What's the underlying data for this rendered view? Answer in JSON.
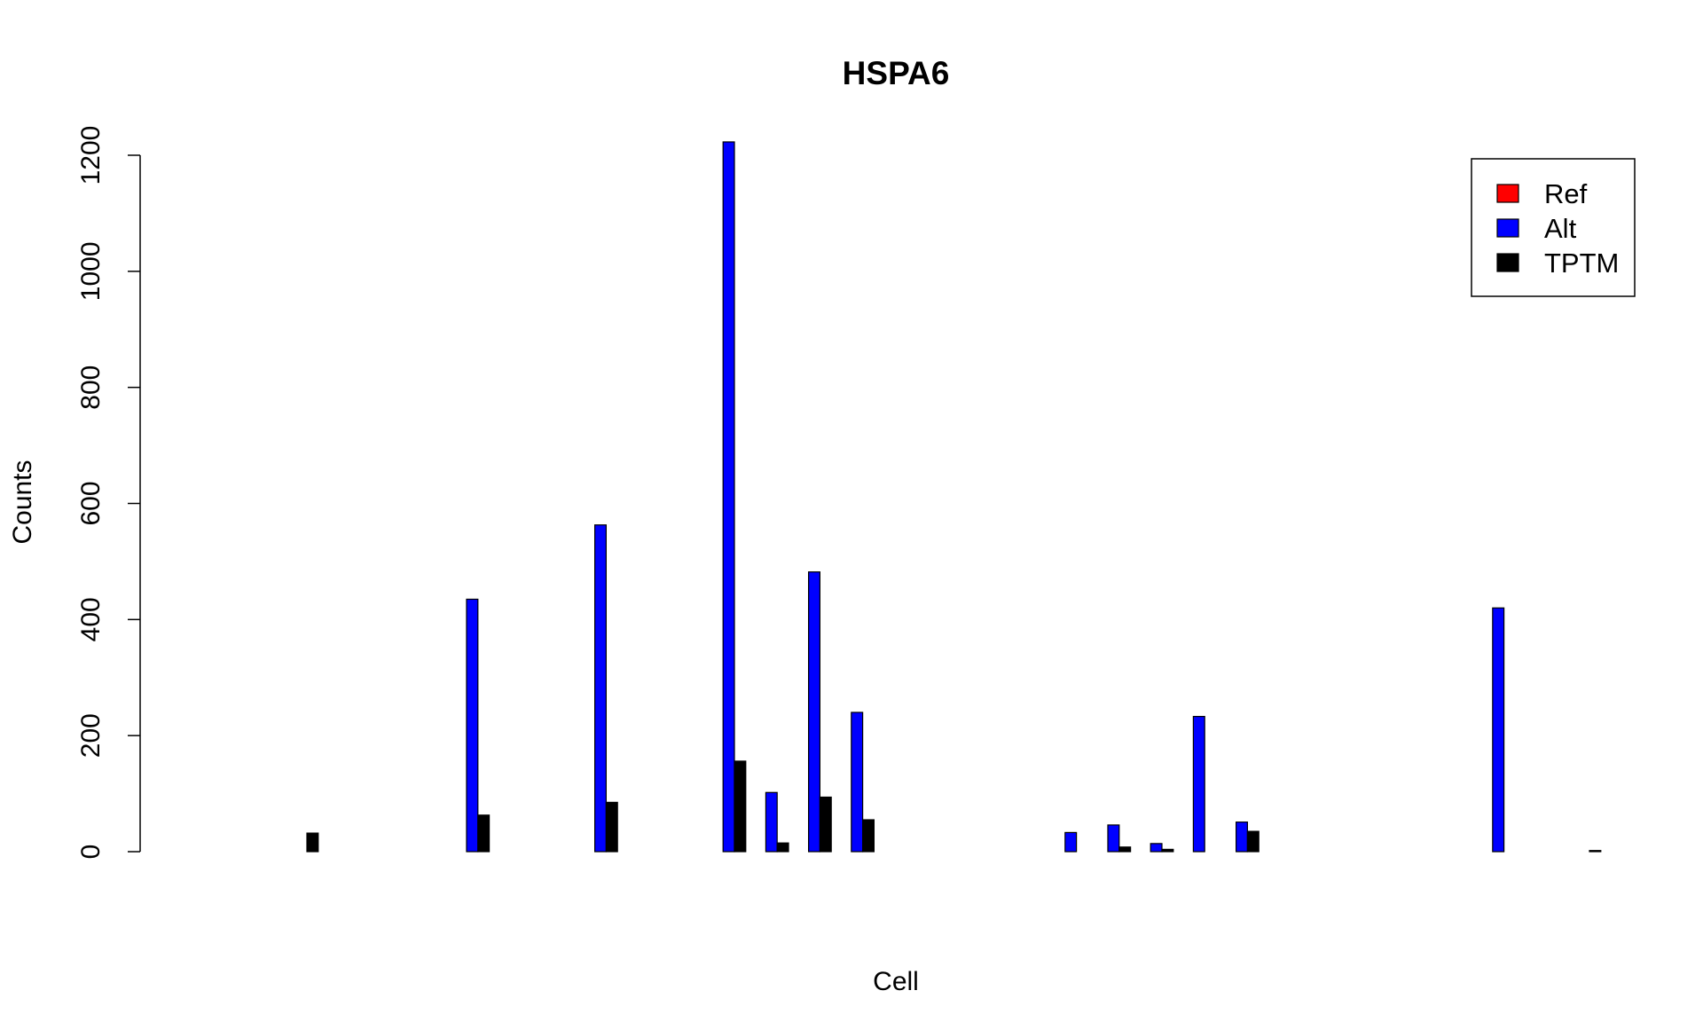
{
  "chart_data": {
    "type": "bar",
    "title": "HSPA6",
    "xlabel": "Cell",
    "ylabel": "Counts",
    "ylim": [
      0,
      1200
    ],
    "yticks": [
      0,
      200,
      400,
      600,
      800,
      1000,
      1200
    ],
    "ytick_labels": [
      "0",
      "200",
      "400",
      "600",
      "800",
      "1000",
      "1200"
    ],
    "grid": false,
    "legend_position": "top-right",
    "num_groups": 40,
    "series": [
      {
        "name": "Ref",
        "color": "#ff0000",
        "values": [
          0,
          0,
          0,
          0,
          0,
          0,
          0,
          0,
          0,
          0,
          0,
          0,
          0,
          0,
          0,
          0,
          0,
          0,
          0,
          0,
          0,
          0,
          0,
          0,
          0,
          0,
          0,
          0,
          0,
          0,
          0,
          0,
          0,
          0,
          0,
          0,
          0,
          0,
          0,
          0
        ]
      },
      {
        "name": "Alt",
        "color": "#0000ff",
        "values": [
          0,
          0,
          0,
          0,
          0,
          0,
          435,
          0,
          0,
          563,
          0,
          0,
          1223,
          102,
          482,
          240,
          0,
          0,
          0,
          0,
          33,
          46,
          14,
          233,
          51,
          0,
          0,
          0,
          0,
          0,
          420,
          0,
          0,
          0,
          0,
          0,
          0,
          0,
          0,
          0
        ]
      },
      {
        "name": "TPTM",
        "color": "#000000",
        "values": [
          0,
          0,
          32,
          0,
          0,
          0,
          63,
          0,
          0,
          85,
          0,
          0,
          156,
          15,
          94,
          55,
          0,
          0,
          0,
          0,
          0,
          8,
          4,
          0,
          35,
          0,
          0,
          0,
          0,
          0,
          0,
          0,
          2,
          0,
          0,
          0,
          0,
          1,
          0,
          0
        ]
      }
    ],
    "drawn_groups": [
      2,
      3,
      6,
      7,
      9,
      11,
      12,
      13,
      14,
      15,
      18,
      19,
      20,
      21,
      22,
      23,
      24,
      30,
      32,
      37
    ]
  }
}
